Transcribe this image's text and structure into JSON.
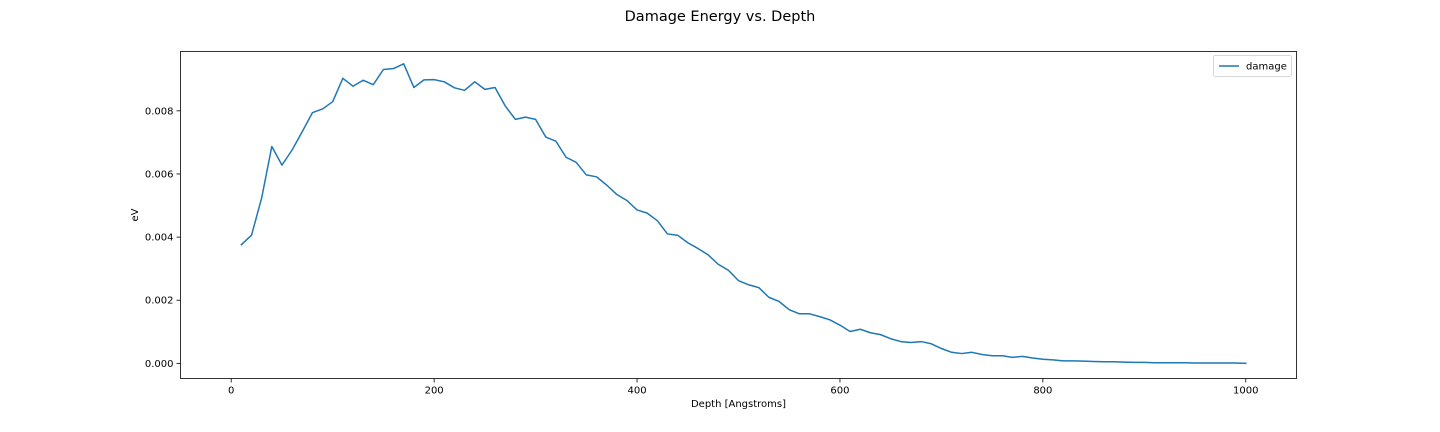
{
  "chart_data": {
    "type": "line",
    "title": "Damage Energy vs. Depth",
    "xlabel": "Depth [Angstroms]",
    "ylabel": "eV",
    "xlim": [
      -50,
      1050
    ],
    "ylim": [
      -0.00048,
      0.00988
    ],
    "xticks": [
      0,
      200,
      400,
      600,
      800,
      1000
    ],
    "xtick_labels": [
      "0",
      "200",
      "400",
      "600",
      "800",
      "1000"
    ],
    "yticks": [
      0.0,
      0.002,
      0.004,
      0.006,
      0.008
    ],
    "ytick_labels": [
      "0.000",
      "0.002",
      "0.004",
      "0.006",
      "0.008"
    ],
    "grid": false,
    "legend_position": "top-right",
    "series": [
      {
        "name": "damage",
        "color": "#1f77b4",
        "x": [
          10,
          20,
          30,
          40,
          50,
          60,
          70,
          80,
          90,
          100,
          110,
          120,
          130,
          140,
          150,
          160,
          170,
          180,
          190,
          200,
          210,
          220,
          230,
          240,
          250,
          260,
          270,
          280,
          290,
          300,
          310,
          320,
          330,
          340,
          350,
          360,
          370,
          380,
          390,
          400,
          410,
          420,
          430,
          440,
          450,
          460,
          470,
          480,
          490,
          500,
          510,
          520,
          530,
          540,
          550,
          560,
          570,
          580,
          590,
          600,
          610,
          620,
          630,
          640,
          650,
          660,
          670,
          680,
          690,
          700,
          710,
          720,
          730,
          740,
          750,
          760,
          770,
          780,
          790,
          800,
          810,
          820,
          830,
          840,
          850,
          860,
          870,
          880,
          890,
          900,
          910,
          920,
          930,
          940,
          950,
          960,
          970,
          980,
          990,
          1000
        ],
        "y": [
          0.00376,
          0.00406,
          0.00524,
          0.00687,
          0.00628,
          0.00676,
          0.00734,
          0.00794,
          0.00806,
          0.00829,
          0.00903,
          0.00878,
          0.00897,
          0.00883,
          0.00931,
          0.00934,
          0.00949,
          0.00874,
          0.00898,
          0.00899,
          0.00892,
          0.00873,
          0.00865,
          0.00892,
          0.00868,
          0.00874,
          0.00816,
          0.00773,
          0.0078,
          0.00773,
          0.00717,
          0.00704,
          0.00653,
          0.00637,
          0.00597,
          0.00591,
          0.00565,
          0.00535,
          0.00516,
          0.00486,
          0.00476,
          0.00452,
          0.0041,
          0.00406,
          0.00382,
          0.00364,
          0.00344,
          0.00314,
          0.00295,
          0.00262,
          0.00249,
          0.0024,
          0.00209,
          0.00196,
          0.0017,
          0.00157,
          0.00157,
          0.00148,
          0.00138,
          0.00121,
          0.00101,
          0.00108,
          0.00097,
          0.00091,
          0.00078,
          0.00069,
          0.00066,
          0.00069,
          0.00062,
          0.00047,
          0.00035,
          0.00031,
          0.00035,
          0.00028,
          0.00024,
          0.00024,
          0.00019,
          0.00022,
          0.00017,
          0.00013,
          0.00011,
          8e-05,
          8e-05,
          7e-05,
          6e-05,
          5e-05,
          5e-05,
          4e-05,
          3e-05,
          3e-05,
          2e-05,
          2e-05,
          2e-05,
          2e-05,
          1e-05,
          1e-05,
          1e-05,
          1e-05,
          1e-05,
          0.0
        ]
      }
    ]
  }
}
